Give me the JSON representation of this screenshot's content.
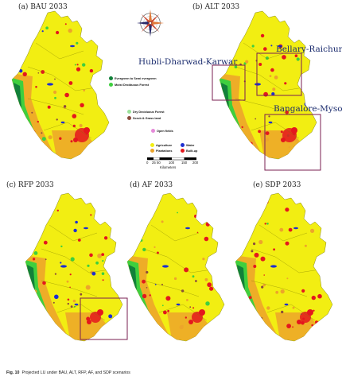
{
  "figure": {
    "caption_prefix": "Fig. 10",
    "caption_text": "Projected LU under BAU, ALT, RFP, AF, and SDP scenarios"
  },
  "panels": [
    {
      "key": "bau",
      "label": "(a) BAU 2033"
    },
    {
      "key": "alt",
      "label": "(b) ALT 2033"
    },
    {
      "key": "rfp",
      "label": "(c) RFP 2033"
    },
    {
      "key": "af",
      "label": "(d) AF 2033"
    },
    {
      "key": "sdp",
      "label": "(e) SDP 2033"
    }
  ],
  "regions": {
    "hubli": "Hubli-Dharwad-Karwar",
    "bellary": "Bellary-Raichur",
    "bangalore": "Bangalore-Mysore"
  },
  "legend": {
    "evergreen": "Evergreen to Semi evergreen",
    "moist": "Moist Deciduous Forest",
    "dry": "Dry Deciduous Forest",
    "scrub": "Scrub & Grass land",
    "open": "Open fields",
    "agriculture": "Agriculture",
    "plantations": "Plantations",
    "water": "Water",
    "builtup": "Built-up"
  },
  "scale": {
    "ticks": [
      "0",
      "25",
      "50",
      "100",
      "150",
      "200"
    ],
    "unit": "Kilometers"
  },
  "colors": {
    "agriculture": "#f2ee12",
    "plantations": "#eda52a",
    "evergreen": "#12803a",
    "moist": "#3ecf3e",
    "dry": "#9be29b",
    "scrub": "#8a4b3c",
    "open": "#e58ad9",
    "water": "#1e2fd0",
    "builtup": "#e4171d",
    "highlight_box": "#7a1f52"
  },
  "compass_icon": "compass-rose-icon"
}
